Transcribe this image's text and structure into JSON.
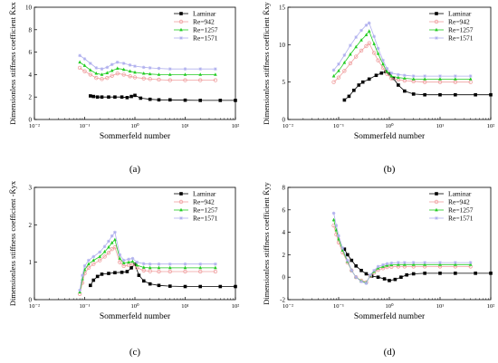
{
  "figure": {
    "x_scale": "log",
    "series_names": [
      "Laminar",
      "Re=942",
      "Re=1257",
      "Re=1571"
    ],
    "series_colors": [
      "#000000",
      "#f0a0a0",
      "#22cc22",
      "#b0b0ee"
    ],
    "series_markers": [
      "square",
      "circle",
      "triangle",
      "star"
    ]
  },
  "chart_data": [
    {
      "type": "line",
      "panel_label": "(a)",
      "xlabel": "Sommerfeld number",
      "ylabel": "Dimensionless stiffness coefficient K̄xx",
      "xlim": [
        0.01,
        100
      ],
      "ylim": [
        0,
        10
      ],
      "yticks": [
        0,
        2,
        4,
        6,
        8,
        10
      ],
      "xtick_labels": [
        "10⁻²",
        "10⁻¹",
        "10⁰",
        "10¹",
        "10²"
      ],
      "legend": "top-right",
      "series": [
        {
          "name": "Laminar",
          "x": [
            0.13,
            0.15,
            0.18,
            0.22,
            0.3,
            0.4,
            0.55,
            0.7,
            0.85,
            1.0,
            1.3,
            2,
            3,
            5,
            10,
            20,
            50,
            100
          ],
          "y": [
            2.1,
            2.05,
            2.0,
            2.0,
            2.0,
            2.0,
            2.0,
            1.95,
            2.05,
            2.15,
            1.9,
            1.8,
            1.75,
            1.75,
            1.72,
            1.7,
            1.7,
            1.7
          ]
        },
        {
          "name": "Re=942",
          "x": [
            0.08,
            0.1,
            0.13,
            0.17,
            0.22,
            0.28,
            0.35,
            0.45,
            0.6,
            0.8,
            1,
            1.5,
            2,
            3,
            5,
            10,
            20,
            40
          ],
          "y": [
            4.6,
            4.3,
            4.0,
            3.7,
            3.6,
            3.7,
            3.9,
            4.1,
            4.0,
            3.85,
            3.75,
            3.65,
            3.6,
            3.55,
            3.5,
            3.5,
            3.5,
            3.5
          ]
        },
        {
          "name": "Re=1257",
          "x": [
            0.08,
            0.1,
            0.13,
            0.17,
            0.22,
            0.28,
            0.35,
            0.45,
            0.6,
            0.8,
            1,
            1.5,
            2,
            3,
            5,
            10,
            20,
            40
          ],
          "y": [
            5.1,
            4.8,
            4.4,
            4.1,
            4.0,
            4.15,
            4.35,
            4.55,
            4.45,
            4.3,
            4.2,
            4.1,
            4.05,
            4.0,
            4.0,
            4.0,
            4.0,
            4.0
          ]
        },
        {
          "name": "Re=1571",
          "x": [
            0.08,
            0.1,
            0.13,
            0.17,
            0.22,
            0.28,
            0.35,
            0.45,
            0.6,
            0.8,
            1,
            1.5,
            2,
            3,
            5,
            10,
            20,
            40
          ],
          "y": [
            5.7,
            5.4,
            5.0,
            4.6,
            4.5,
            4.65,
            4.9,
            5.1,
            5.0,
            4.85,
            4.75,
            4.65,
            4.6,
            4.55,
            4.5,
            4.5,
            4.5,
            4.5
          ]
        }
      ]
    },
    {
      "type": "line",
      "panel_label": "(b)",
      "xlabel": "Sommerfeld number",
      "ylabel": "Dimensionless stiffness coefficient K̄xy",
      "xlim": [
        0.01,
        100
      ],
      "ylim": [
        0,
        15
      ],
      "yticks": [
        0,
        5,
        10,
        15
      ],
      "xtick_labels": [
        "10⁻²",
        "10⁻¹",
        "10⁰",
        "10¹",
        "10²"
      ],
      "legend": "top-right",
      "series": [
        {
          "name": "Laminar",
          "x": [
            0.13,
            0.16,
            0.2,
            0.25,
            0.3,
            0.4,
            0.55,
            0.7,
            0.85,
            1.0,
            1.2,
            1.5,
            2,
            3,
            5,
            10,
            20,
            50,
            100
          ],
          "y": [
            2.6,
            3.1,
            3.9,
            4.6,
            5.0,
            5.4,
            5.9,
            6.2,
            6.4,
            6.1,
            5.5,
            4.6,
            3.8,
            3.4,
            3.3,
            3.3,
            3.3,
            3.3,
            3.3
          ]
        },
        {
          "name": "Re=942",
          "x": [
            0.08,
            0.1,
            0.13,
            0.17,
            0.22,
            0.28,
            0.35,
            0.4,
            0.5,
            0.6,
            0.75,
            0.9,
            1.1,
            1.5,
            2,
            3,
            5,
            10,
            20,
            40
          ],
          "y": [
            5.0,
            5.6,
            6.5,
            7.5,
            8.4,
            9.2,
            9.8,
            10.2,
            8.9,
            7.9,
            6.9,
            6.1,
            5.5,
            5.3,
            5.2,
            5.1,
            5.0,
            5.0,
            5.0,
            5.0
          ]
        },
        {
          "name": "Re=1257",
          "x": [
            0.08,
            0.1,
            0.13,
            0.17,
            0.22,
            0.28,
            0.35,
            0.4,
            0.5,
            0.6,
            0.75,
            0.9,
            1.1,
            1.5,
            2,
            3,
            5,
            10,
            20,
            40
          ],
          "y": [
            5.8,
            6.5,
            7.6,
            8.7,
            9.7,
            10.6,
            11.3,
            11.8,
            10.1,
            8.8,
            7.4,
            6.4,
            5.8,
            5.6,
            5.5,
            5.4,
            5.4,
            5.4,
            5.4,
            5.4
          ]
        },
        {
          "name": "Re=1571",
          "x": [
            0.08,
            0.1,
            0.13,
            0.17,
            0.22,
            0.28,
            0.35,
            0.4,
            0.5,
            0.6,
            0.75,
            0.9,
            1.1,
            1.5,
            2,
            3,
            5,
            10,
            20,
            40
          ],
          "y": [
            6.6,
            7.4,
            8.6,
            9.9,
            11.0,
            11.9,
            12.6,
            12.9,
            11.1,
            9.5,
            7.9,
            6.8,
            6.2,
            6.0,
            5.9,
            5.8,
            5.8,
            5.8,
            5.8,
            5.8
          ]
        }
      ]
    },
    {
      "type": "line",
      "panel_label": "(c)",
      "xlabel": "Sommerfeld number",
      "ylabel": "Dimensionless stiffness coefficient -K̄yx",
      "xlim": [
        0.01,
        100
      ],
      "ylim": [
        0,
        3
      ],
      "yticks": [
        0,
        1,
        2,
        3
      ],
      "xtick_labels": [
        "10⁻²",
        "10⁻¹",
        "10⁰",
        "10¹",
        "10²"
      ],
      "legend": "top-right",
      "series": [
        {
          "name": "Laminar",
          "x": [
            0.13,
            0.15,
            0.18,
            0.22,
            0.3,
            0.4,
            0.55,
            0.7,
            0.85,
            1.0,
            1.2,
            1.5,
            2,
            3,
            5,
            10,
            20,
            50,
            100
          ],
          "y": [
            0.38,
            0.52,
            0.62,
            0.68,
            0.7,
            0.72,
            0.73,
            0.75,
            0.85,
            0.95,
            0.65,
            0.5,
            0.42,
            0.38,
            0.36,
            0.35,
            0.35,
            0.35,
            0.35
          ]
        },
        {
          "name": "Re=942",
          "x": [
            0.08,
            0.09,
            0.1,
            0.12,
            0.15,
            0.2,
            0.25,
            0.3,
            0.35,
            0.4,
            0.5,
            0.6,
            0.75,
            0.9,
            1.1,
            1.5,
            2,
            3,
            5,
            10,
            20,
            40
          ],
          "y": [
            0.15,
            0.45,
            0.7,
            0.85,
            0.95,
            1.05,
            1.15,
            1.25,
            1.35,
            1.4,
            1.0,
            0.9,
            0.92,
            0.95,
            0.85,
            0.78,
            0.76,
            0.75,
            0.75,
            0.75,
            0.75,
            0.75
          ]
        },
        {
          "name": "Re=1257",
          "x": [
            0.08,
            0.09,
            0.1,
            0.12,
            0.15,
            0.2,
            0.25,
            0.3,
            0.35,
            0.4,
            0.5,
            0.6,
            0.75,
            0.9,
            1.1,
            1.5,
            2,
            3,
            5,
            10,
            20,
            40
          ],
          "y": [
            0.2,
            0.55,
            0.8,
            0.95,
            1.05,
            1.15,
            1.28,
            1.4,
            1.52,
            1.6,
            1.1,
            0.98,
            1.0,
            1.02,
            0.92,
            0.86,
            0.85,
            0.85,
            0.85,
            0.85,
            0.85,
            0.85
          ]
        },
        {
          "name": "Re=1571",
          "x": [
            0.08,
            0.09,
            0.1,
            0.12,
            0.15,
            0.2,
            0.25,
            0.3,
            0.35,
            0.4,
            0.5,
            0.6,
            0.75,
            0.9,
            1.1,
            1.5,
            2,
            3,
            5,
            10,
            20,
            40
          ],
          "y": [
            0.25,
            0.65,
            0.9,
            1.05,
            1.15,
            1.27,
            1.42,
            1.56,
            1.7,
            1.8,
            1.2,
            1.05,
            1.08,
            1.1,
            1.0,
            0.96,
            0.95,
            0.95,
            0.95,
            0.95,
            0.95,
            0.95
          ]
        }
      ]
    },
    {
      "type": "line",
      "panel_label": "(d)",
      "xlabel": "Sommerfeld number",
      "ylabel": "Dimensionless stiffness coefficient K̄yy",
      "xlim": [
        0.01,
        100
      ],
      "ylim": [
        -2,
        8
      ],
      "yticks": [
        -2,
        0,
        2,
        4,
        6,
        8
      ],
      "xtick_labels": [
        "10⁻²",
        "10⁻¹",
        "10⁰",
        "10¹",
        "10²"
      ],
      "legend": "top-right",
      "series": [
        {
          "name": "Laminar",
          "x": [
            0.13,
            0.15,
            0.18,
            0.22,
            0.28,
            0.35,
            0.45,
            0.6,
            0.8,
            1.0,
            1.3,
            1.7,
            2.2,
            3,
            5,
            10,
            20,
            50,
            100
          ],
          "y": [
            2.5,
            2.0,
            1.5,
            1.0,
            0.6,
            0.3,
            0.1,
            0.0,
            -0.15,
            -0.3,
            -0.2,
            0.0,
            0.2,
            0.3,
            0.35,
            0.35,
            0.35,
            0.35,
            0.35
          ]
        },
        {
          "name": "Re=942",
          "x": [
            0.08,
            0.09,
            0.1,
            0.12,
            0.15,
            0.18,
            0.22,
            0.28,
            0.35,
            0.42,
            0.5,
            0.6,
            0.75,
            0.9,
            1.1,
            1.5,
            2,
            3,
            5,
            10,
            20,
            40
          ],
          "y": [
            4.6,
            3.8,
            3.1,
            2.2,
            1.3,
            0.6,
            0.0,
            -0.3,
            -0.45,
            0.1,
            0.4,
            0.65,
            0.8,
            0.9,
            0.92,
            0.95,
            0.95,
            0.95,
            0.95,
            0.95,
            0.95,
            0.95
          ]
        },
        {
          "name": "Re=1257",
          "x": [
            0.08,
            0.09,
            0.1,
            0.12,
            0.15,
            0.18,
            0.22,
            0.28,
            0.35,
            0.42,
            0.5,
            0.6,
            0.75,
            0.9,
            1.1,
            1.5,
            2,
            3,
            5,
            10,
            20,
            40
          ],
          "y": [
            5.1,
            4.2,
            3.4,
            2.4,
            1.4,
            0.6,
            0.0,
            -0.35,
            -0.5,
            0.15,
            0.5,
            0.8,
            0.95,
            1.05,
            1.1,
            1.12,
            1.12,
            1.12,
            1.12,
            1.12,
            1.12,
            1.12
          ]
        },
        {
          "name": "Re=1571",
          "x": [
            0.08,
            0.09,
            0.1,
            0.12,
            0.15,
            0.18,
            0.22,
            0.28,
            0.35,
            0.42,
            0.5,
            0.6,
            0.75,
            0.9,
            1.1,
            1.5,
            2,
            3,
            5,
            10,
            20,
            40
          ],
          "y": [
            5.7,
            4.6,
            3.7,
            2.6,
            1.5,
            0.6,
            0.0,
            -0.4,
            -0.55,
            0.2,
            0.6,
            0.95,
            1.1,
            1.2,
            1.25,
            1.3,
            1.3,
            1.3,
            1.3,
            1.3,
            1.3,
            1.3
          ]
        }
      ]
    }
  ]
}
